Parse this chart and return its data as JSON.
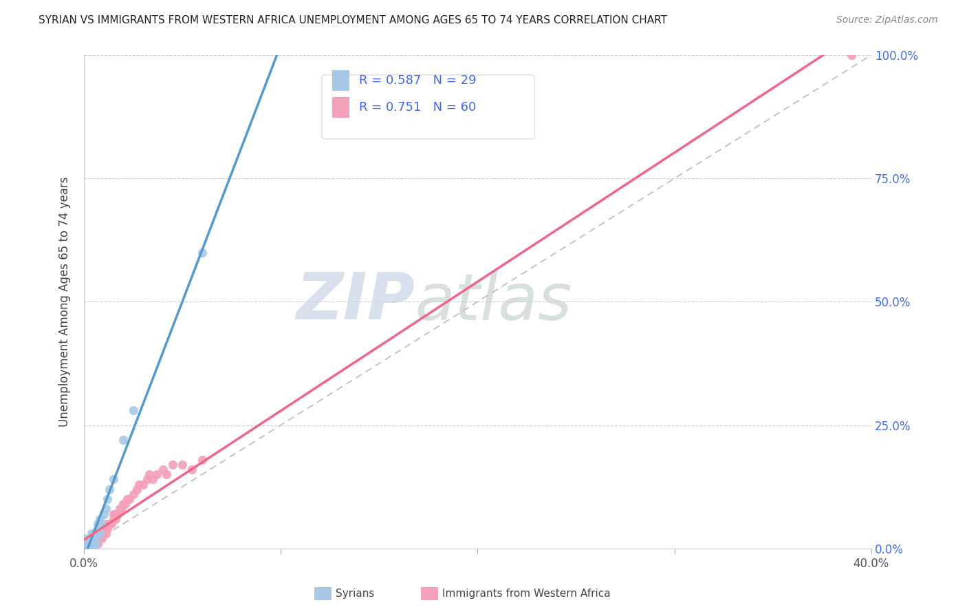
{
  "title": "SYRIAN VS IMMIGRANTS FROM WESTERN AFRICA UNEMPLOYMENT AMONG AGES 65 TO 74 YEARS CORRELATION CHART",
  "source": "Source: ZipAtlas.com",
  "ylabel": "Unemployment Among Ages 65 to 74 years",
  "legend_label1": "Syrians",
  "legend_label2": "Immigrants from Western Africa",
  "r1": 0.587,
  "n1": 29,
  "r2": 0.751,
  "n2": 60,
  "color_syrian": "#a8c8e8",
  "color_western_africa": "#f4a0b8",
  "color_line_syrian": "#5599cc",
  "color_line_western_africa": "#ee6688",
  "color_diagonal": "#bbbbbb",
  "color_text_blue": "#4169e1",
  "watermark_zip": "ZIP",
  "watermark_atlas": "atlas",
  "watermark_color_zip": "#c8d4e8",
  "watermark_color_atlas": "#c8d4cc",
  "background_color": "#ffffff",
  "xlim": [
    0.0,
    0.4
  ],
  "ylim": [
    0.0,
    1.0
  ],
  "syrians_x": [
    0.0,
    0.0,
    0.0,
    0.001,
    0.001,
    0.002,
    0.002,
    0.003,
    0.003,
    0.004,
    0.004,
    0.005,
    0.005,
    0.005,
    0.006,
    0.006,
    0.007,
    0.007,
    0.008,
    0.008,
    0.009,
    0.01,
    0.011,
    0.012,
    0.013,
    0.015,
    0.02,
    0.025,
    0.06
  ],
  "syrians_y": [
    0.0,
    0.01,
    0.02,
    0.0,
    0.01,
    0.0,
    0.01,
    0.01,
    0.02,
    0.02,
    0.03,
    0.0,
    0.02,
    0.03,
    0.01,
    0.02,
    0.04,
    0.05,
    0.03,
    0.06,
    0.05,
    0.07,
    0.08,
    0.1,
    0.12,
    0.14,
    0.22,
    0.28,
    0.6
  ],
  "wa_x": [
    0.0,
    0.0,
    0.0,
    0.001,
    0.001,
    0.001,
    0.002,
    0.002,
    0.002,
    0.003,
    0.003,
    0.003,
    0.004,
    0.004,
    0.005,
    0.005,
    0.005,
    0.006,
    0.006,
    0.007,
    0.007,
    0.007,
    0.008,
    0.008,
    0.009,
    0.009,
    0.01,
    0.01,
    0.011,
    0.011,
    0.012,
    0.012,
    0.013,
    0.014,
    0.015,
    0.015,
    0.016,
    0.016,
    0.017,
    0.018,
    0.019,
    0.02,
    0.021,
    0.022,
    0.023,
    0.025,
    0.027,
    0.028,
    0.03,
    0.032,
    0.033,
    0.035,
    0.037,
    0.04,
    0.042,
    0.045,
    0.05,
    0.055,
    0.06,
    0.39
  ],
  "wa_y": [
    0.0,
    0.0,
    0.0,
    0.0,
    0.0,
    0.01,
    0.0,
    0.0,
    0.01,
    0.0,
    0.01,
    0.01,
    0.0,
    0.01,
    0.0,
    0.01,
    0.02,
    0.01,
    0.02,
    0.01,
    0.02,
    0.03,
    0.02,
    0.03,
    0.02,
    0.03,
    0.03,
    0.04,
    0.03,
    0.04,
    0.04,
    0.05,
    0.05,
    0.05,
    0.06,
    0.07,
    0.06,
    0.07,
    0.07,
    0.08,
    0.08,
    0.09,
    0.09,
    0.1,
    0.1,
    0.11,
    0.12,
    0.13,
    0.13,
    0.14,
    0.15,
    0.14,
    0.15,
    0.16,
    0.15,
    0.17,
    0.17,
    0.16,
    0.18,
    1.0
  ],
  "xtick_positions": [
    0.0,
    0.1,
    0.2,
    0.3,
    0.4
  ],
  "xtick_show_labels": [
    true,
    false,
    false,
    false,
    true
  ],
  "ytick_vals": [
    0.0,
    0.25,
    0.5,
    0.75,
    1.0
  ]
}
